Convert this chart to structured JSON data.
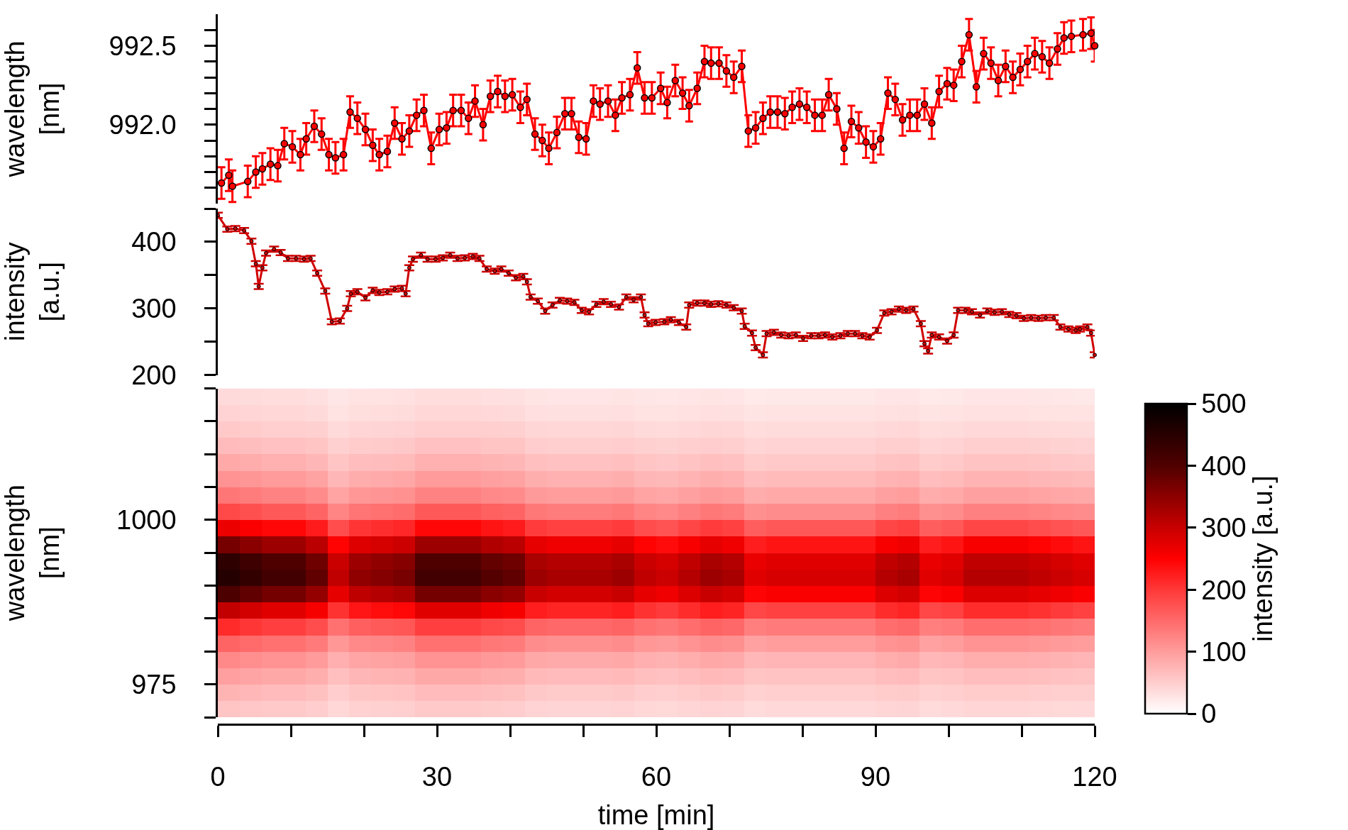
{
  "chart_data": [
    {
      "type": "line",
      "color": "#ff0000",
      "marker": "circle",
      "ylabel": "wavelength [nm]",
      "tick_labels": "y",
      "xlim": [
        0,
        120
      ],
      "ylim": [
        991.5,
        992.7
      ],
      "yticks": [
        {
          "value": 991.6,
          "label": null
        },
        {
          "value": 991.7,
          "label": null
        },
        {
          "value": 991.8,
          "label": null
        },
        {
          "value": 991.9,
          "label": null
        },
        {
          "value": 992.0,
          "label": "992.0"
        },
        {
          "value": 992.1,
          "label": null
        },
        {
          "value": 992.2,
          "label": null
        },
        {
          "value": 992.3,
          "label": null
        },
        {
          "value": 992.4,
          "label": null
        },
        {
          "value": 992.5,
          "label": "992.5"
        },
        {
          "value": 992.6,
          "label": null
        }
      ],
      "x": [
        0.5,
        1.5,
        2.0,
        4.1,
        5.2,
        6.1,
        7.2,
        8.2,
        9.1,
        10.2,
        11.3,
        12.1,
        13.2,
        14.2,
        15.2,
        16.1,
        17.2,
        18.1,
        19.1,
        20.2,
        21.2,
        22.1,
        23.2,
        24.2,
        25.2,
        26.2,
        27.2,
        28.2,
        29.2,
        30.3,
        31.3,
        32.2,
        33.3,
        34.3,
        35.2,
        36.3,
        37.3,
        38.3,
        39.3,
        40.3,
        41.4,
        42.3,
        43.4,
        44.4,
        45.3,
        46.4,
        47.5,
        48.4,
        49.4,
        50.4,
        51.4,
        52.3,
        53.4,
        54.4,
        55.3,
        56.4,
        57.4,
        58.4,
        59.4,
        60.6,
        61.5,
        62.6,
        63.6,
        64.5,
        65.6,
        66.6,
        67.5,
        68.6,
        69.6,
        70.6,
        71.7,
        72.6,
        73.6,
        74.6,
        75.6,
        76.6,
        77.6,
        78.6,
        79.6,
        80.6,
        81.7,
        82.7,
        83.6,
        84.7,
        85.7,
        86.7,
        87.7,
        88.7,
        89.7,
        90.7,
        91.7,
        92.7,
        93.7,
        94.7,
        95.7,
        96.7,
        97.7,
        98.7,
        99.8,
        100.7,
        101.8,
        102.8,
        103.8,
        104.8,
        105.8,
        106.8,
        107.8,
        108.8,
        109.8,
        110.8,
        111.8,
        112.8,
        113.8,
        114.9,
        115.8,
        116.8,
        118.4,
        119.5,
        120
      ],
      "values": [
        991.63,
        991.68,
        991.61,
        991.64,
        991.7,
        991.72,
        991.75,
        991.74,
        991.88,
        991.86,
        991.81,
        991.91,
        991.99,
        991.94,
        991.81,
        991.79,
        991.81,
        992.08,
        992.04,
        991.97,
        991.87,
        991.81,
        991.83,
        992.01,
        991.91,
        991.96,
        992.06,
        992.09,
        991.85,
        991.97,
        991.98,
        992.09,
        992.09,
        992.04,
        992.15,
        992.0,
        992.18,
        992.21,
        992.18,
        992.19,
        992.11,
        992.16,
        991.94,
        991.9,
        991.85,
        991.95,
        992.07,
        992.07,
        991.92,
        991.91,
        992.15,
        992.13,
        992.15,
        992.06,
        992.17,
        992.19,
        992.36,
        992.17,
        992.17,
        992.23,
        992.14,
        992.28,
        992.2,
        992.12,
        992.23,
        992.4,
        992.39,
        992.39,
        992.34,
        992.3,
        992.37,
        991.96,
        991.98,
        992.04,
        992.08,
        992.08,
        992.07,
        992.11,
        992.13,
        992.11,
        992.06,
        992.06,
        992.19,
        992.1,
        991.85,
        992.02,
        991.98,
        991.89,
        991.86,
        991.91,
        992.2,
        992.16,
        992.03,
        992.06,
        992.06,
        992.13,
        992.01,
        992.21,
        992.26,
        992.25,
        992.4,
        992.57,
        992.24,
        992.45,
        992.39,
        992.28,
        992.37,
        992.3,
        992.35,
        992.4,
        992.45,
        992.43,
        992.39,
        992.48,
        992.55,
        992.56,
        992.57,
        992.58,
        992.5
      ],
      "errors": [
        0.1,
        0.1,
        0.1,
        0.1,
        0.1,
        0.1,
        0.1,
        0.1,
        0.1,
        0.1,
        0.1,
        0.1,
        0.1,
        0.1,
        0.1,
        0.1,
        0.1,
        0.1,
        0.1,
        0.1,
        0.1,
        0.1,
        0.1,
        0.1,
        0.1,
        0.1,
        0.1,
        0.1,
        0.1,
        0.1,
        0.1,
        0.1,
        0.1,
        0.1,
        0.1,
        0.1,
        0.1,
        0.1,
        0.1,
        0.1,
        0.1,
        0.1,
        0.1,
        0.1,
        0.1,
        0.1,
        0.1,
        0.1,
        0.1,
        0.1,
        0.1,
        0.1,
        0.1,
        0.1,
        0.1,
        0.1,
        0.1,
        0.1,
        0.1,
        0.1,
        0.1,
        0.1,
        0.1,
        0.1,
        0.1,
        0.1,
        0.1,
        0.1,
        0.1,
        0.1,
        0.1,
        0.1,
        0.1,
        0.1,
        0.1,
        0.1,
        0.1,
        0.1,
        0.1,
        0.1,
        0.1,
        0.1,
        0.1,
        0.1,
        0.1,
        0.1,
        0.1,
        0.1,
        0.1,
        0.1,
        0.1,
        0.1,
        0.1,
        0.1,
        0.1,
        0.1,
        0.1,
        0.1,
        0.1,
        0.1,
        0.1,
        0.1,
        0.1,
        0.1,
        0.1,
        0.1,
        0.1,
        0.1,
        0.1,
        0.1,
        0.1,
        0.1,
        0.1,
        0.1,
        0.1,
        0.1,
        0.1,
        0.1,
        0.1
      ]
    },
    {
      "type": "line",
      "color": "#d00000",
      "marker": "circle",
      "ylabel": "intensity [a.u.]",
      "tick_labels": "y",
      "xlim": [
        0,
        120
      ],
      "ylim": [
        200,
        450
      ],
      "yticks": [
        200,
        {
          "value": 250,
          "label": null
        },
        300,
        {
          "value": 350,
          "label": null
        },
        400,
        {
          "value": 450,
          "label": null
        }
      ],
      "x": [
        0,
        1.3,
        2.4,
        3.6,
        4.6,
        5.2,
        5.6,
        6.1,
        6.6,
        7.7,
        8.6,
        9.6,
        10.7,
        11.8,
        12.7,
        13.6,
        14.7,
        15.6,
        16.7,
        17.7,
        18.2,
        19.1,
        20.2,
        21.2,
        22.1,
        23.2,
        24.2,
        25.2,
        25.7,
        26.2,
        26.7,
        27.8,
        28.7,
        29.8,
        30.8,
        31.8,
        32.8,
        33.8,
        34.9,
        35.8,
        36.8,
        37.9,
        38.8,
        39.8,
        40.8,
        41.8,
        42.3,
        42.8,
        43.8,
        44.8,
        45.8,
        46.8,
        47.8,
        48.8,
        49.8,
        50.8,
        51.8,
        52.8,
        53.8,
        54.9,
        55.9,
        56.9,
        57.9,
        58.4,
        58.9,
        59.9,
        61.1,
        62.0,
        63.1,
        64.1,
        64.5,
        65.6,
        66.6,
        67.5,
        68.5,
        69.6,
        70.6,
        71.7,
        72.1,
        73.1,
        73.6,
        74.6,
        75.1,
        76.1,
        77.1,
        78.1,
        79.1,
        80.1,
        81.2,
        82.2,
        83.1,
        84.1,
        85.2,
        86.2,
        87.2,
        88.2,
        89.2,
        90.2,
        91.2,
        92.2,
        93.2,
        94.2,
        95.2,
        96.2,
        96.7,
        97.2,
        97.7,
        98.7,
        99.8,
        100.7,
        101.3,
        102.3,
        103.2,
        104.3,
        105.3,
        106.3,
        107.3,
        108.3,
        109.3,
        110.3,
        111.3,
        112.3,
        113.3,
        114.4,
        115.3,
        116.4,
        117.4,
        118.0,
        119.0,
        119.5,
        120
      ],
      "values": [
        440,
        419,
        420,
        417,
        401,
        367,
        333,
        361,
        383,
        389,
        384,
        375,
        375,
        374,
        375,
        353,
        326,
        280,
        281,
        300,
        322,
        325,
        316,
        327,
        324,
        325,
        329,
        330,
        322,
        361,
        374,
        380,
        374,
        374,
        376,
        380,
        375,
        376,
        378,
        375,
        359,
        356,
        359,
        353,
        346,
        348,
        340,
        317,
        311,
        296,
        305,
        312,
        311,
        309,
        297,
        295,
        306,
        310,
        306,
        302,
        317,
        313,
        317,
        290,
        277,
        279,
        280,
        283,
        279,
        272,
        305,
        308,
        308,
        306,
        307,
        305,
        301,
        296,
        273,
        263,
        241,
        230,
        262,
        264,
        260,
        259,
        260,
        255,
        259,
        259,
        260,
        257,
        259,
        262,
        262,
        259,
        257,
        267,
        293,
        295,
        299,
        297,
        299,
        277,
        247,
        236,
        260,
        257,
        251,
        260,
        297,
        297,
        295,
        290,
        296,
        294,
        295,
        291,
        289,
        285,
        286,
        285,
        286,
        286,
        272,
        269,
        267,
        269,
        272,
        263,
        230
      ],
      "errors": [
        4,
        4,
        4,
        4,
        4,
        4,
        4,
        4,
        4,
        4,
        4,
        4,
        4,
        4,
        4,
        4,
        4,
        4,
        4,
        4,
        4,
        4,
        4,
        4,
        4,
        4,
        4,
        4,
        4,
        4,
        4,
        4,
        4,
        4,
        4,
        4,
        4,
        4,
        4,
        4,
        4,
        4,
        4,
        4,
        4,
        4,
        4,
        4,
        4,
        4,
        4,
        4,
        4,
        4,
        4,
        4,
        4,
        4,
        4,
        4,
        4,
        4,
        4,
        4,
        4,
        4,
        4,
        4,
        4,
        4,
        4,
        4,
        4,
        4,
        4,
        4,
        4,
        4,
        4,
        4,
        4,
        4,
        4,
        4,
        4,
        4,
        4,
        4,
        4,
        4,
        4,
        4,
        4,
        4,
        4,
        4,
        4,
        4,
        4,
        4,
        4,
        4,
        4,
        4,
        4,
        4,
        4,
        4,
        4,
        4,
        4,
        4,
        4,
        4,
        4,
        4,
        4,
        4,
        4,
        4,
        4,
        4,
        4,
        4,
        4,
        4,
        4,
        4,
        4,
        4,
        4
      ]
    },
    {
      "type": "heatmap",
      "xlabel": "time [min]",
      "ylabel": "wavelength [nm]",
      "clabel": "intensity [a.u.]",
      "xlim": [
        0,
        120
      ],
      "ylim": [
        970,
        1020
      ],
      "clim": [
        0,
        500
      ],
      "cticks": [
        0,
        100,
        200,
        300,
        400,
        500
      ],
      "xticks": [
        0,
        {
          "value": 10,
          "label": null
        },
        {
          "value": 20,
          "label": null
        },
        30,
        {
          "value": 40,
          "label": null
        },
        {
          "value": 50,
          "label": null
        },
        60,
        {
          "value": 70,
          "label": null
        },
        {
          "value": 80,
          "label": null
        },
        90,
        {
          "value": 100,
          "label": null
        },
        {
          "value": 110,
          "label": null
        },
        120
      ],
      "yticks": [
        {
          "value": 970,
          "label": null
        },
        975,
        {
          "value": 980,
          "label": null
        },
        {
          "value": 985,
          "label": null
        },
        {
          "value": 990,
          "label": null
        },
        {
          "value": 995,
          "label": null
        },
        1000,
        {
          "value": 1005,
          "label": null
        },
        {
          "value": 1010,
          "label": null
        },
        {
          "value": 1015,
          "label": null
        },
        {
          "value": 1020,
          "label": null
        }
      ],
      "x": [
        1.5,
        4.5,
        7.5,
        10.5,
        13.5,
        16.5,
        19.5,
        22.5,
        25.5,
        28.5,
        31.5,
        34.5,
        37.5,
        40.5,
        43.5,
        46.5,
        49.5,
        52.5,
        55.5,
        58.5,
        61.5,
        64.5,
        67.5,
        70.5,
        73.5,
        76.5,
        79.5,
        82.5,
        85.5,
        88.5,
        91.5,
        94.5,
        97.5,
        100.5,
        103.5,
        106.5,
        109.5,
        112.5,
        115.5,
        118.5
      ],
      "y": [
        1018.75,
        1016.25,
        1013.75,
        1011.25,
        1008.75,
        1006.25,
        1003.75,
        1001.25,
        998.75,
        996.25,
        993.75,
        991.25,
        988.75,
        986.25,
        983.75,
        981.25,
        978.75,
        976.25,
        973.75,
        971.25
      ],
      "cells": [
        [
          37,
          35,
          34,
          34,
          31,
          25,
          28,
          29,
          30,
          34,
          34,
          34,
          32,
          31,
          27,
          26,
          26,
          26,
          27,
          25,
          24,
          26,
          27,
          26,
          22,
          23,
          23,
          23,
          23,
          23,
          26,
          26,
          22,
          23,
          26,
          26,
          26,
          25,
          24,
          23
        ],
        [
          44,
          42,
          40,
          40,
          37,
          29,
          33,
          34,
          35,
          40,
          40,
          40,
          38,
          37,
          32,
          31,
          31,
          31,
          32,
          29,
          29,
          30,
          32,
          31,
          27,
          28,
          28,
          28,
          28,
          28,
          30,
          31,
          27,
          28,
          30,
          30,
          30,
          29,
          29,
          28
        ],
        [
          55,
          53,
          50,
          50,
          47,
          37,
          42,
          43,
          44,
          50,
          50,
          50,
          48,
          47,
          41,
          40,
          40,
          40,
          41,
          37,
          36,
          38,
          41,
          40,
          34,
          35,
          35,
          35,
          35,
          35,
          38,
          40,
          34,
          35,
          38,
          38,
          38,
          37,
          36,
          35
        ],
        [
          69,
          66,
          63,
          63,
          59,
          47,
          53,
          54,
          56,
          63,
          63,
          63,
          60,
          59,
          51,
          50,
          50,
          50,
          51,
          47,
          45,
          48,
          51,
          50,
          42,
          44,
          44,
          44,
          44,
          44,
          48,
          50,
          42,
          44,
          48,
          48,
          48,
          47,
          45,
          44
        ],
        [
          87,
          84,
          80,
          80,
          74,
          59,
          67,
          68,
          70,
          80,
          80,
          80,
          76,
          74,
          65,
          63,
          63,
          63,
          65,
          59,
          57,
          61,
          65,
          63,
          53,
          55,
          55,
          55,
          55,
          55,
          61,
          63,
          53,
          55,
          61,
          61,
          61,
          59,
          57,
          55
        ],
        [
          110,
          106,
          101,
          101,
          94,
          74,
          84,
          86,
          89,
          101,
          101,
          101,
          96,
          94,
          82,
          79,
          79,
          79,
          82,
          74,
          72,
          77,
          82,
          79,
          67,
          70,
          70,
          70,
          70,
          70,
          77,
          79,
          67,
          70,
          77,
          77,
          77,
          74,
          72,
          70
        ],
        [
          138,
          132,
          126,
          126,
          117,
          93,
          105,
          108,
          111,
          126,
          126,
          126,
          120,
          117,
          102,
          99,
          99,
          99,
          102,
          93,
          90,
          96,
          102,
          99,
          84,
          87,
          87,
          87,
          87,
          87,
          96,
          99,
          84,
          87,
          96,
          96,
          96,
          93,
          90,
          87
        ],
        [
          184,
          176,
          168,
          168,
          156,
          124,
          140,
          144,
          148,
          168,
          168,
          168,
          160,
          156,
          136,
          132,
          132,
          132,
          136,
          124,
          120,
          128,
          136,
          132,
          112,
          116,
          116,
          116,
          116,
          116,
          128,
          132,
          112,
          116,
          128,
          128,
          128,
          124,
          120,
          116
        ],
        [
          267,
          255,
          244,
          244,
          226,
          180,
          203,
          209,
          215,
          244,
          244,
          244,
          232,
          226,
          197,
          191,
          191,
          191,
          197,
          180,
          174,
          186,
          197,
          191,
          162,
          168,
          168,
          168,
          168,
          168,
          186,
          191,
          162,
          168,
          186,
          186,
          186,
          180,
          174,
          168
        ],
        [
          368,
          352,
          336,
          336,
          312,
          248,
          280,
          288,
          296,
          336,
          336,
          336,
          320,
          312,
          272,
          264,
          264,
          264,
          272,
          248,
          240,
          256,
          272,
          264,
          224,
          232,
          232,
          232,
          232,
          232,
          256,
          264,
          224,
          232,
          256,
          256,
          256,
          248,
          240,
          232
        ],
        [
          442,
          422,
          403,
          403,
          374,
          298,
          336,
          346,
          355,
          403,
          403,
          403,
          384,
          374,
          326,
          317,
          317,
          317,
          326,
          298,
          288,
          307,
          326,
          317,
          269,
          278,
          278,
          278,
          278,
          278,
          307,
          317,
          269,
          278,
          307,
          307,
          307,
          298,
          288,
          278
        ],
        [
          455,
          436,
          416,
          416,
          386,
          307,
          347,
          356,
          366,
          416,
          416,
          416,
          396,
          386,
          337,
          327,
          327,
          327,
          337,
          307,
          297,
          317,
          337,
          327,
          277,
          287,
          287,
          287,
          287,
          287,
          317,
          327,
          277,
          287,
          317,
          317,
          317,
          307,
          297,
          287
        ],
        [
          405,
          387,
          370,
          370,
          343,
          273,
          308,
          317,
          326,
          370,
          370,
          370,
          352,
          343,
          299,
          290,
          290,
          290,
          299,
          273,
          264,
          282,
          299,
          290,
          246,
          255,
          255,
          255,
          255,
          255,
          282,
          290,
          246,
          255,
          282,
          282,
          282,
          273,
          264,
          255
        ],
        [
          304,
          290,
          277,
          277,
          257,
          205,
          231,
          238,
          244,
          277,
          277,
          277,
          264,
          257,
          224,
          218,
          218,
          218,
          224,
          205,
          198,
          211,
          224,
          218,
          185,
          191,
          191,
          191,
          191,
          191,
          211,
          218,
          185,
          191,
          211,
          211,
          211,
          205,
          198,
          191
        ],
        [
          212,
          202,
          193,
          193,
          179,
          143,
          161,
          166,
          170,
          193,
          193,
          193,
          184,
          179,
          156,
          152,
          152,
          152,
          156,
          143,
          138,
          147,
          156,
          152,
          129,
          133,
          133,
          133,
          133,
          133,
          147,
          152,
          129,
          133,
          147,
          147,
          147,
          143,
          138,
          133
        ],
        [
          156,
          150,
          143,
          143,
          133,
          105,
          119,
          122,
          126,
          143,
          143,
          143,
          136,
          133,
          116,
          112,
          112,
          112,
          116,
          105,
          102,
          109,
          116,
          112,
          95,
          99,
          99,
          99,
          99,
          99,
          109,
          112,
          95,
          99,
          109,
          109,
          109,
          105,
          102,
          99
        ],
        [
          120,
          114,
          109,
          109,
          101,
          81,
          91,
          94,
          96,
          109,
          109,
          109,
          104,
          101,
          88,
          86,
          86,
          86,
          88,
          81,
          78,
          83,
          88,
          86,
          73,
          75,
          75,
          75,
          75,
          75,
          83,
          86,
          73,
          75,
          83,
          83,
          83,
          81,
          78,
          75
        ],
        [
          97,
          92,
          88,
          88,
          82,
          65,
          74,
          76,
          78,
          88,
          88,
          88,
          84,
          82,
          71,
          69,
          69,
          69,
          71,
          65,
          63,
          67,
          71,
          69,
          59,
          61,
          61,
          61,
          61,
          61,
          67,
          69,
          59,
          61,
          67,
          67,
          67,
          65,
          63,
          61
        ],
        [
          76,
          73,
          69,
          69,
          64,
          51,
          58,
          59,
          61,
          69,
          69,
          69,
          66,
          64,
          56,
          54,
          54,
          54,
          56,
          51,
          50,
          53,
          56,
          54,
          46,
          48,
          48,
          48,
          48,
          48,
          53,
          54,
          46,
          48,
          53,
          53,
          53,
          51,
          50,
          48
        ],
        [
          60,
          57,
          55,
          55,
          51,
          40,
          46,
          47,
          48,
          55,
          55,
          55,
          52,
          51,
          44,
          43,
          43,
          43,
          44,
          40,
          39,
          42,
          44,
          43,
          36,
          38,
          38,
          38,
          38,
          38,
          42,
          43,
          36,
          38,
          42,
          42,
          42,
          40,
          39,
          38
        ]
      ]
    }
  ]
}
